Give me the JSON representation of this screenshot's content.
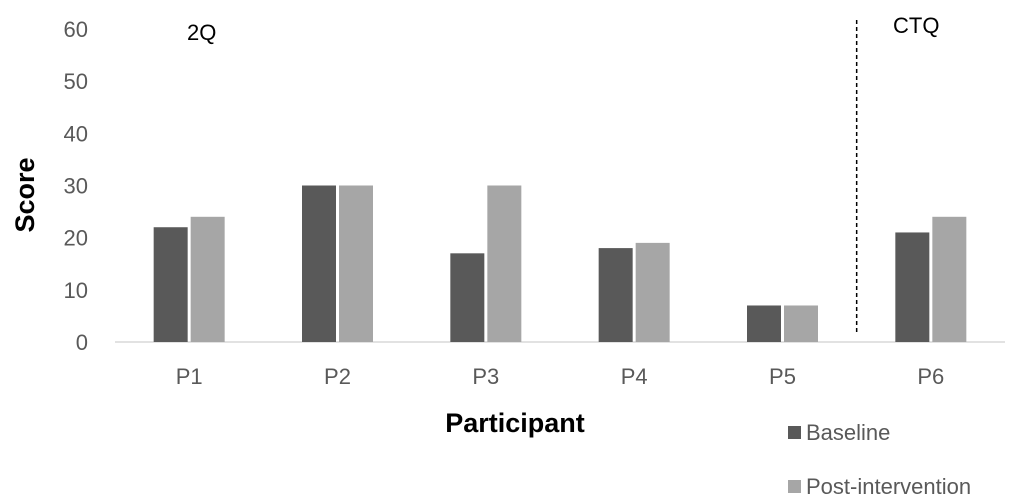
{
  "chart_data": {
    "type": "bar",
    "categories": [
      "P1",
      "P2",
      "P3",
      "P4",
      "P5",
      "P6"
    ],
    "series": [
      {
        "name": "Baseline",
        "values": [
          22,
          30,
          17,
          18,
          7,
          21
        ]
      },
      {
        "name": "Post-intervention",
        "values": [
          24,
          30,
          30,
          19,
          7,
          24
        ]
      }
    ],
    "xlabel": "Participant",
    "ylabel": "Score",
    "ylim": [
      0,
      60
    ],
    "yticks": [
      "0",
      "10",
      "20",
      "30",
      "40",
      "50",
      "60"
    ],
    "annotations": [
      "2Q",
      "CTQ"
    ],
    "divider_after_category": "P5",
    "grid": false,
    "legend_position": "bottom-right",
    "colors": {
      "Baseline": "#595959",
      "Post-intervention": "#a6a6a6",
      "axis": "#d9d9d9",
      "divider": "#000000"
    }
  }
}
